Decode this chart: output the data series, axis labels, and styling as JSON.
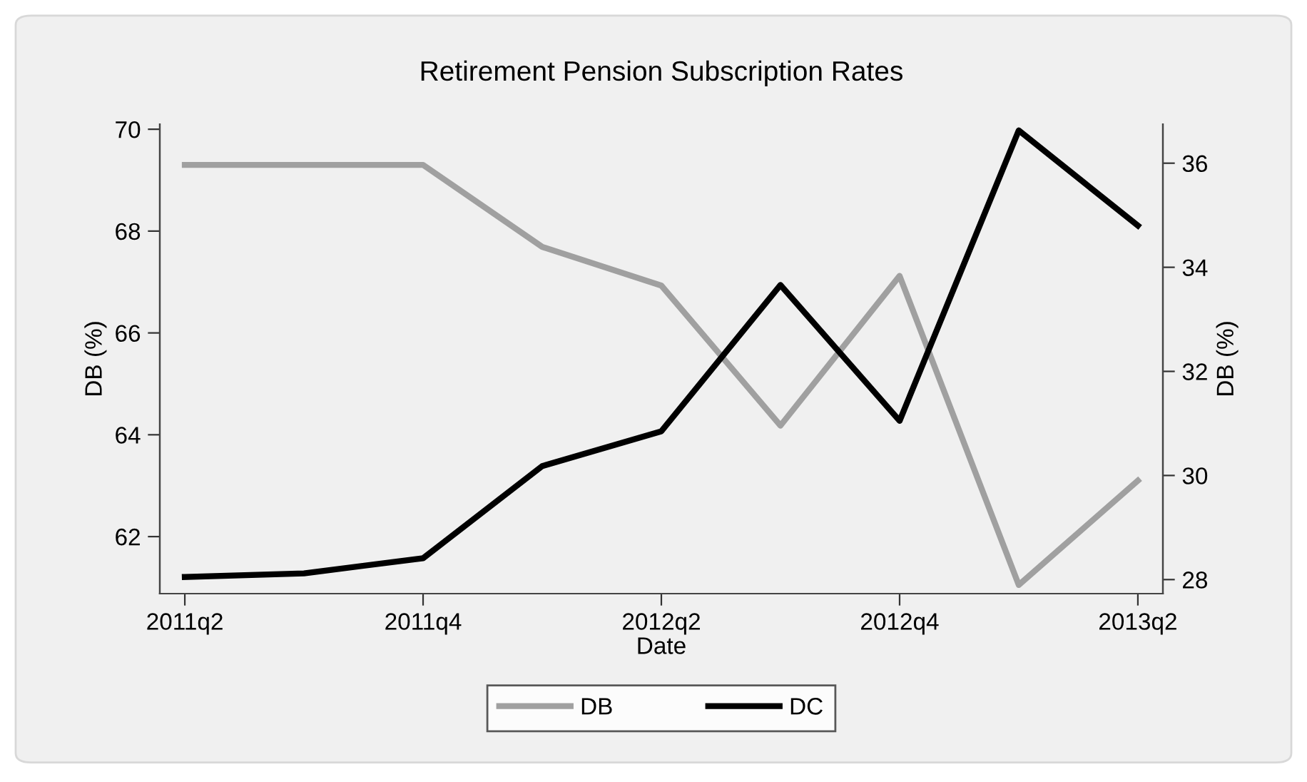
{
  "chart_data": {
    "type": "line",
    "title": "Retirement Pension Subscription Rates",
    "xlabel": "Date",
    "ylabel": "DB (%)",
    "y2label": "DB (%)",
    "categories": [
      "2011q2",
      null,
      "2011q4",
      null,
      "2012q2",
      null,
      "2012q4",
      null,
      "2013q2"
    ],
    "series": [
      {
        "name": "DB",
        "color": "#a0a0a0",
        "values": [
          69.3,
          69.3,
          69.3,
          67.69,
          66.93,
          64.18,
          67.12,
          61.05,
          63.1
        ]
      },
      {
        "name": "DC",
        "color": "#000000",
        "axis": "y2",
        "values": [
          28.05,
          28.12,
          28.41,
          30.18,
          30.85,
          33.66,
          31.05,
          36.63,
          34.8
        ]
      }
    ],
    "ylim": [
      60.88,
      70.1
    ],
    "yticks": [
      62,
      64,
      66,
      68,
      70
    ],
    "y2lim": [
      27.73,
      36.75
    ],
    "y2ticks": [
      28,
      30,
      32,
      34,
      36
    ],
    "grid": false,
    "legend": "bottom",
    "marker": "none",
    "line_style": "solid"
  }
}
